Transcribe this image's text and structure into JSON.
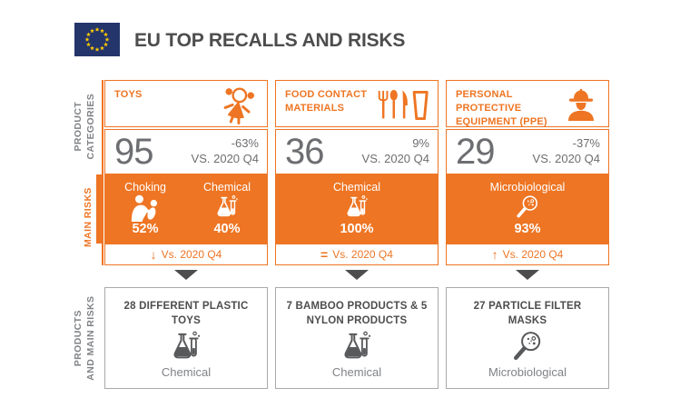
{
  "header": {
    "title": "EU TOP RECALLS AND RISKS",
    "flag_icon": "eu-flag"
  },
  "sidebar": {
    "labels": [
      {
        "line1": "PRODUCT",
        "line2": "CATEGORIES"
      },
      {
        "line1": "MAIN RISKS"
      },
      {
        "line1": "PRODUCTS",
        "line2": "AND MAIN RISKS"
      }
    ]
  },
  "colors": {
    "accent_orange": "#ee7523",
    "dark_text": "#4d4d4d",
    "number_gray": "#6d6e71",
    "label_gray": "#808285",
    "border_gray": "#a7a9ac",
    "icon_dark": "#58595b",
    "flag_blue": "#24356b",
    "star_yellow": "#ffcc00"
  },
  "categories": [
    {
      "title": "TOYS",
      "icon": "doll-icon",
      "count": "95",
      "change": "-63%",
      "change_ref": "VS. 2020 Q4",
      "risks": [
        {
          "name": "Choking",
          "icon": "choking-icon",
          "pct": "52%"
        },
        {
          "name": "Chemical",
          "icon": "chemical-flask-icon",
          "pct": "40%"
        }
      ],
      "trend": {
        "direction": "down",
        "symbol": "↓",
        "label": "Vs. 2020 Q4"
      },
      "products": {
        "title": "28 DIFFERENT PLASTIC TOYS",
        "icon": "chemical-flask-icon",
        "risk_label": "Chemical"
      }
    },
    {
      "title": "FOOD CONTACT MATERIALS",
      "icon": "cutlery-icon",
      "count": "36",
      "change": "9%",
      "change_ref": "VS. 2020 Q4",
      "risks": [
        {
          "name": "Chemical",
          "icon": "chemical-flask-icon",
          "pct": "100%"
        }
      ],
      "trend": {
        "direction": "equal",
        "symbol": "=",
        "label": "Vs. 2020 Q4"
      },
      "products": {
        "title": "7 BAMBOO PRODUCTS & 5 NYLON PRODUCTS",
        "icon": "chemical-flask-icon",
        "risk_label": "Chemical"
      }
    },
    {
      "title": "PERSONAL PROTECTIVE EQUIPMENT (PPE)",
      "icon": "worker-icon",
      "count": "29",
      "change": "-37%",
      "change_ref": "VS. 2020 Q4",
      "risks": [
        {
          "name": "Microbiological",
          "icon": "microbe-magnifier-icon",
          "pct": "93%"
        }
      ],
      "trend": {
        "direction": "up",
        "symbol": "↑",
        "label": "Vs. 2020 Q4"
      },
      "products": {
        "title": "27 PARTICLE FILTER MASKS",
        "icon": "microbe-magnifier-icon",
        "risk_label": "Microbiological"
      }
    }
  ]
}
